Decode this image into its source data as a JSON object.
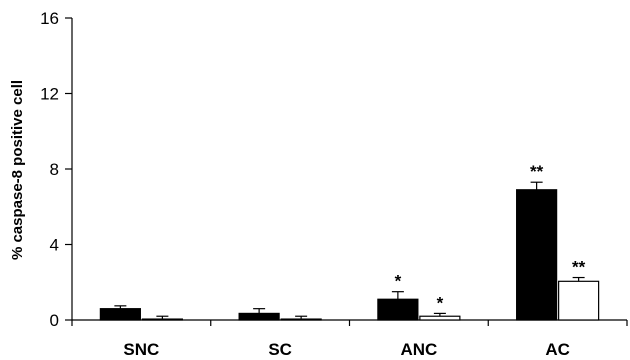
{
  "chart_data": {
    "type": "bar",
    "ylabel": "% caspase-8 positive cell",
    "xlabel": "",
    "ylim": [
      0,
      16
    ],
    "yticks": [
      0,
      4,
      8,
      12,
      16
    ],
    "categories": [
      "SNC",
      "SC",
      "ANC",
      "AC"
    ],
    "series": [
      {
        "color": "#000000",
        "values": [
          0.6,
          0.35,
          1.1,
          6.9
        ],
        "errors": [
          0.15,
          0.25,
          0.4,
          0.4
        ],
        "annotations": [
          "",
          "",
          "*",
          "**"
        ]
      },
      {
        "color": "#ffffff",
        "values": [
          0.05,
          0.05,
          0.2,
          2.05
        ],
        "errors": [
          0.15,
          0.15,
          0.15,
          0.2
        ],
        "annotations": [
          "",
          "",
          "*",
          "**"
        ]
      }
    ],
    "grid": false,
    "legend": "none"
  }
}
